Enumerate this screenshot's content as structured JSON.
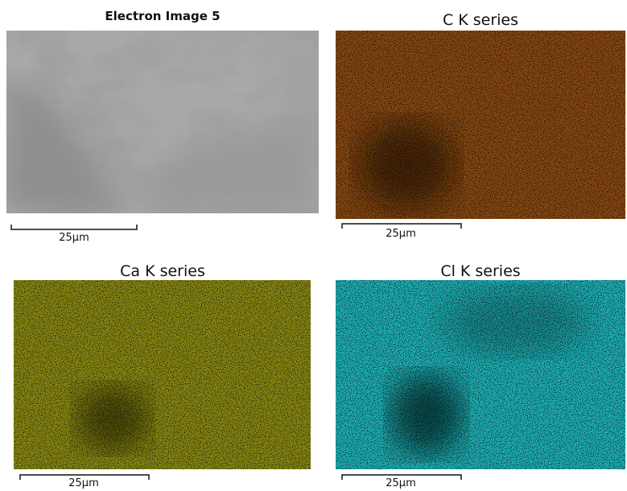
{
  "panels": [
    {
      "title": "Electron Image 5",
      "scale_bar_label": "25µm"
    },
    {
      "title": "C K series",
      "scale_bar_label": "25µm"
    },
    {
      "title": "Ca K series",
      "scale_bar_label": "25µm"
    },
    {
      "title": "Cl K series",
      "scale_bar_label": "25µm"
    }
  ]
}
